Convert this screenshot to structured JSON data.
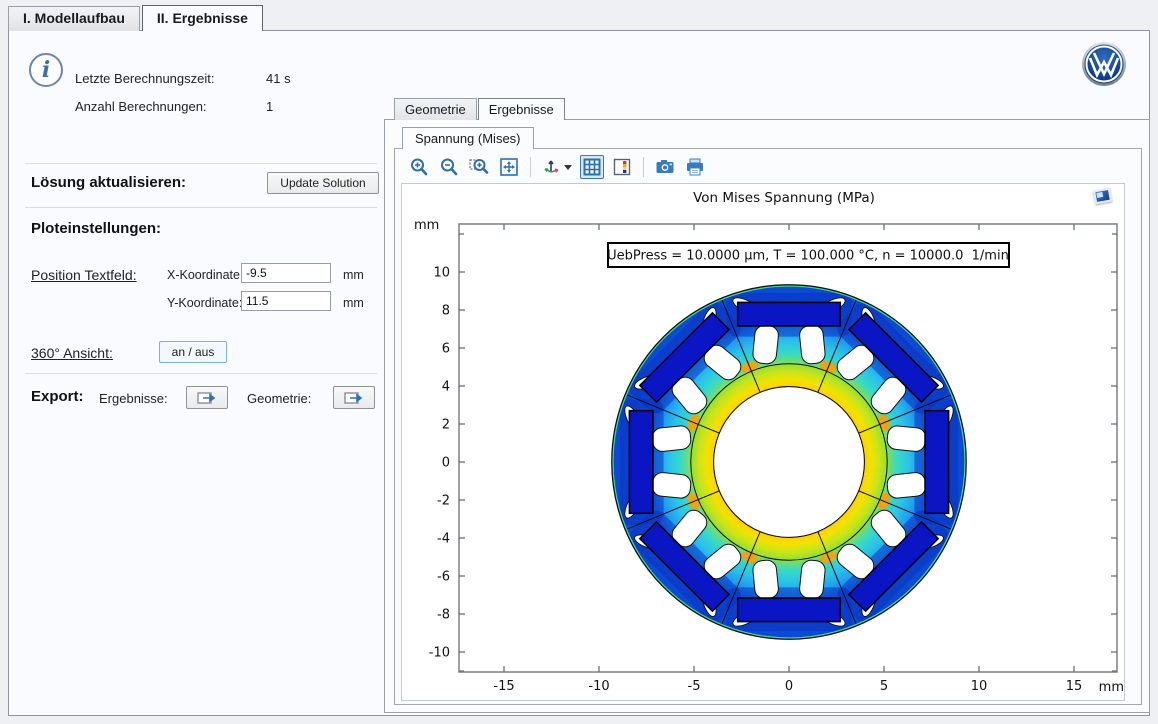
{
  "window": {
    "main_tabs": [
      {
        "label": "I. Modellaufbau",
        "active": false
      },
      {
        "label": "II. Ergebnisse",
        "active": true
      }
    ]
  },
  "left_panel": {
    "info_rows": [
      {
        "label": "Letzte Berechnungszeit:",
        "value": "41 s"
      },
      {
        "label": "Anzahl Berechnungen:",
        "value": "1"
      }
    ],
    "update_section": {
      "heading": "Lösung aktualisieren:",
      "button": "Update Solution"
    },
    "plot_settings": {
      "heading": "Ploteinstellungen:",
      "position_label": "Position Textfeld:",
      "x_field": {
        "label": "X-Koordinate:",
        "value": "-9.5",
        "unit": "mm"
      },
      "y_field": {
        "label": "Y-Koordinate:",
        "value": "11.5",
        "unit": "mm"
      }
    },
    "view360": {
      "label": "360° Ansicht:",
      "button": "an / aus"
    },
    "export_section": {
      "heading": "Export:",
      "results_label": "Ergebnisse:",
      "geometry_label": "Geometrie:"
    }
  },
  "right_panel": {
    "tabs": [
      {
        "label": "Geometrie",
        "active": false
      },
      {
        "label": "Ergebnisse",
        "active": true
      }
    ],
    "plot_tab": "Spannung (Mises)",
    "toolbar_icons": [
      "zoom-in",
      "zoom-out",
      "zoom-box",
      "zoom-extents",
      "go-to-default-view",
      "show-grid",
      "show-color-legend",
      "snapshot",
      "print"
    ],
    "plot": {
      "title": "Von Mises Spannung (MPa)",
      "annotation": "UebPress = 10.0000 µm, T = 100.000 °C, n = 10000.0  1/min",
      "x_ticks": [
        "-15",
        "-10",
        "-5",
        "0",
        "5",
        "10",
        "15"
      ],
      "y_ticks": [
        "10",
        "8",
        "6",
        "4",
        "2",
        "0",
        "-2",
        "-4",
        "-6",
        "-8",
        "-10"
      ],
      "x_unit": "mm",
      "y_unit": "mm"
    }
  },
  "colors": {
    "toolbar_icon_blue": "#2f6fa8",
    "stress_low": "#0b47cf",
    "stress_mid_cyan": "#35d9c9",
    "stress_high_yellow": "#ffd200",
    "stress_max_orange": "#ffaa00",
    "magnet_fill": "#0a16c4",
    "vw_badge_blue": "#12408e"
  }
}
